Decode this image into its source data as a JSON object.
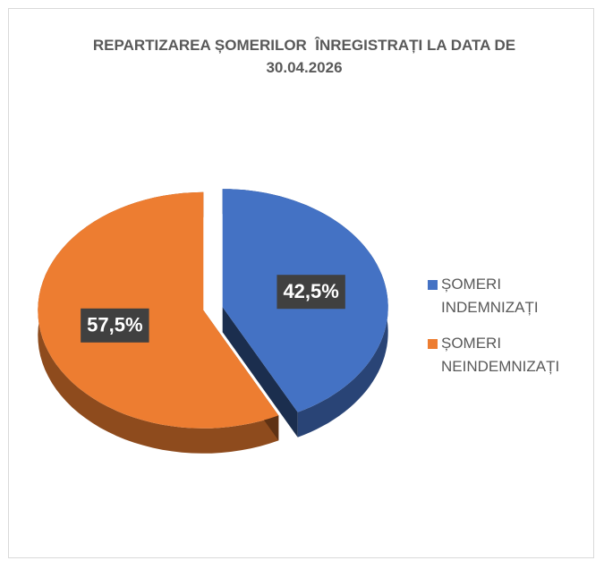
{
  "chart_data": {
    "type": "pie",
    "title": "REPARTIZAREA ȘOMERILOR  ÎNREGISTRAȚI LA DATA DE 30.04.2026",
    "categories": [
      "ȘOMERI INDEMNIZAȚI",
      "ȘOMERI NEINDEMNIZAȚI"
    ],
    "values": [
      42.5,
      57.5
    ],
    "value_labels": [
      "42,5%",
      "57,5%"
    ],
    "colors": [
      "#4472c4",
      "#ed7d31"
    ],
    "legend": "right"
  }
}
